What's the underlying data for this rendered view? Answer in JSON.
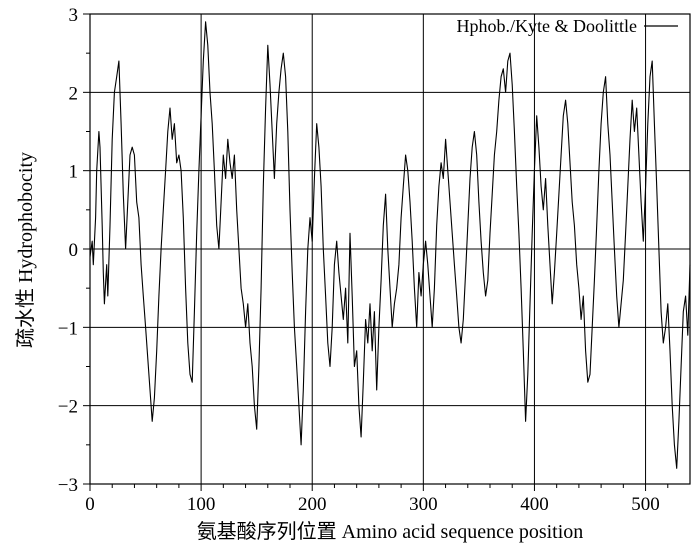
{
  "chart_data": {
    "type": "line",
    "title": "",
    "xlabel": "氨基酸序列位置 Amino acid sequence position",
    "ylabel": "疏水性  Hydrophobocity",
    "xlim": [
      0,
      540
    ],
    "ylim": [
      -3,
      3
    ],
    "xticks": [
      0,
      100,
      200,
      300,
      400,
      500
    ],
    "yticks": [
      -3,
      -2,
      -1,
      0,
      1,
      2,
      3
    ],
    "xtick_labels": [
      "0",
      "100",
      "200",
      "300",
      "400",
      "500"
    ],
    "ytick_labels": [
      "−3",
      "−2",
      "−1",
      "0",
      "1",
      "2",
      "3"
    ],
    "grid": true,
    "legend_position": "top-right",
    "series": [
      {
        "name": "Hphob./Kyte & Doolittle",
        "color": "#000000",
        "points": [
          [
            0,
            -0.1
          ],
          [
            2,
            0.1
          ],
          [
            3,
            -0.2
          ],
          [
            5,
            0.4
          ],
          [
            6,
            1.0
          ],
          [
            8,
            1.5
          ],
          [
            9,
            1.3
          ],
          [
            11,
            0.3
          ],
          [
            12,
            -0.3
          ],
          [
            13,
            -0.7
          ],
          [
            15,
            -0.2
          ],
          [
            16,
            -0.6
          ],
          [
            18,
            0.3
          ],
          [
            20,
            1.4
          ],
          [
            22,
            2.0
          ],
          [
            24,
            2.2
          ],
          [
            26,
            2.4
          ],
          [
            28,
            1.6
          ],
          [
            30,
            0.7
          ],
          [
            32,
            0.0
          ],
          [
            34,
            0.6
          ],
          [
            36,
            1.2
          ],
          [
            38,
            1.3
          ],
          [
            40,
            1.2
          ],
          [
            42,
            0.6
          ],
          [
            44,
            0.4
          ],
          [
            46,
            -0.2
          ],
          [
            48,
            -0.6
          ],
          [
            50,
            -1.0
          ],
          [
            52,
            -1.4
          ],
          [
            54,
            -1.8
          ],
          [
            56,
            -2.2
          ],
          [
            58,
            -1.9
          ],
          [
            60,
            -1.3
          ],
          [
            62,
            -0.6
          ],
          [
            64,
            0.0
          ],
          [
            66,
            0.5
          ],
          [
            68,
            1.0
          ],
          [
            70,
            1.5
          ],
          [
            72,
            1.8
          ],
          [
            74,
            1.4
          ],
          [
            76,
            1.6
          ],
          [
            78,
            1.1
          ],
          [
            80,
            1.2
          ],
          [
            82,
            1.0
          ],
          [
            84,
            0.4
          ],
          [
            86,
            -0.5
          ],
          [
            88,
            -1.2
          ],
          [
            90,
            -1.6
          ],
          [
            92,
            -1.7
          ],
          [
            94,
            -0.8
          ],
          [
            96,
            0.2
          ],
          [
            98,
            1.0
          ],
          [
            100,
            1.7
          ],
          [
            102,
            2.4
          ],
          [
            104,
            2.9
          ],
          [
            106,
            2.6
          ],
          [
            108,
            2.0
          ],
          [
            110,
            1.6
          ],
          [
            112,
            1.0
          ],
          [
            114,
            0.3
          ],
          [
            116,
            0.0
          ],
          [
            118,
            0.6
          ],
          [
            120,
            1.2
          ],
          [
            122,
            0.9
          ],
          [
            124,
            1.4
          ],
          [
            126,
            1.1
          ],
          [
            128,
            0.9
          ],
          [
            130,
            1.2
          ],
          [
            132,
            0.5
          ],
          [
            134,
            0.0
          ],
          [
            136,
            -0.5
          ],
          [
            138,
            -0.7
          ],
          [
            140,
            -1.0
          ],
          [
            142,
            -0.7
          ],
          [
            144,
            -1.2
          ],
          [
            146,
            -1.5
          ],
          [
            148,
            -2.0
          ],
          [
            150,
            -2.3
          ],
          [
            152,
            -1.5
          ],
          [
            154,
            -0.5
          ],
          [
            156,
            0.8
          ],
          [
            158,
            1.8
          ],
          [
            160,
            2.6
          ],
          [
            162,
            2.1
          ],
          [
            164,
            1.5
          ],
          [
            166,
            0.9
          ],
          [
            168,
            1.6
          ],
          [
            170,
            2.0
          ],
          [
            172,
            2.3
          ],
          [
            174,
            2.5
          ],
          [
            176,
            2.2
          ],
          [
            178,
            1.5
          ],
          [
            180,
            0.5
          ],
          [
            182,
            -0.3
          ],
          [
            184,
            -1.0
          ],
          [
            186,
            -1.5
          ],
          [
            188,
            -2.0
          ],
          [
            190,
            -2.5
          ],
          [
            192,
            -1.8
          ],
          [
            194,
            -0.8
          ],
          [
            196,
            0.0
          ],
          [
            198,
            0.4
          ],
          [
            200,
            0.1
          ],
          [
            202,
            0.9
          ],
          [
            204,
            1.6
          ],
          [
            206,
            1.3
          ],
          [
            208,
            0.8
          ],
          [
            210,
            0.0
          ],
          [
            212,
            -0.6
          ],
          [
            214,
            -1.2
          ],
          [
            216,
            -1.5
          ],
          [
            218,
            -1.0
          ],
          [
            220,
            -0.2
          ],
          [
            222,
            0.1
          ],
          [
            224,
            -0.3
          ],
          [
            226,
            -0.6
          ],
          [
            228,
            -0.9
          ],
          [
            230,
            -0.5
          ],
          [
            232,
            -1.2
          ],
          [
            234,
            0.2
          ],
          [
            236,
            -0.6
          ],
          [
            238,
            -1.5
          ],
          [
            240,
            -1.3
          ],
          [
            242,
            -2.0
          ],
          [
            244,
            -2.4
          ],
          [
            246,
            -1.7
          ],
          [
            248,
            -0.9
          ],
          [
            250,
            -1.2
          ],
          [
            252,
            -0.7
          ],
          [
            254,
            -1.3
          ],
          [
            256,
            -0.8
          ],
          [
            258,
            -1.8
          ],
          [
            260,
            -1.0
          ],
          [
            262,
            -0.4
          ],
          [
            264,
            0.3
          ],
          [
            266,
            0.7
          ],
          [
            268,
            0.0
          ],
          [
            270,
            -0.5
          ],
          [
            272,
            -1.0
          ],
          [
            274,
            -0.7
          ],
          [
            276,
            -0.5
          ],
          [
            278,
            -0.2
          ],
          [
            280,
            0.4
          ],
          [
            282,
            0.8
          ],
          [
            284,
            1.2
          ],
          [
            286,
            1.0
          ],
          [
            288,
            0.6
          ],
          [
            290,
            0.1
          ],
          [
            292,
            -0.5
          ],
          [
            294,
            -1.0
          ],
          [
            296,
            -0.3
          ],
          [
            298,
            -0.6
          ],
          [
            300,
            -0.2
          ],
          [
            302,
            0.1
          ],
          [
            304,
            -0.2
          ],
          [
            306,
            -0.6
          ],
          [
            308,
            -1.0
          ],
          [
            310,
            -0.5
          ],
          [
            312,
            0.3
          ],
          [
            314,
            0.8
          ],
          [
            316,
            1.1
          ],
          [
            318,
            0.9
          ],
          [
            320,
            1.4
          ],
          [
            322,
            1.0
          ],
          [
            324,
            0.6
          ],
          [
            326,
            0.2
          ],
          [
            328,
            -0.2
          ],
          [
            330,
            -0.6
          ],
          [
            332,
            -1.0
          ],
          [
            334,
            -1.2
          ],
          [
            336,
            -0.9
          ],
          [
            338,
            -0.3
          ],
          [
            340,
            0.3
          ],
          [
            342,
            0.9
          ],
          [
            344,
            1.3
          ],
          [
            346,
            1.5
          ],
          [
            348,
            1.2
          ],
          [
            350,
            0.6
          ],
          [
            352,
            0.1
          ],
          [
            354,
            -0.3
          ],
          [
            356,
            -0.6
          ],
          [
            358,
            -0.4
          ],
          [
            360,
            0.2
          ],
          [
            362,
            0.7
          ],
          [
            364,
            1.2
          ],
          [
            366,
            1.5
          ],
          [
            368,
            1.9
          ],
          [
            370,
            2.2
          ],
          [
            372,
            2.3
          ],
          [
            374,
            2.0
          ],
          [
            376,
            2.4
          ],
          [
            378,
            2.5
          ],
          [
            380,
            2.1
          ],
          [
            382,
            1.5
          ],
          [
            384,
            0.8
          ],
          [
            386,
            0.2
          ],
          [
            388,
            -0.5
          ],
          [
            390,
            -1.3
          ],
          [
            392,
            -2.2
          ],
          [
            394,
            -1.6
          ],
          [
            396,
            -0.7
          ],
          [
            398,
            0.2
          ],
          [
            400,
            1.0
          ],
          [
            402,
            1.7
          ],
          [
            404,
            1.3
          ],
          [
            406,
            0.8
          ],
          [
            408,
            0.5
          ],
          [
            410,
            0.9
          ],
          [
            412,
            0.3
          ],
          [
            414,
            -0.2
          ],
          [
            416,
            -0.7
          ],
          [
            418,
            -0.3
          ],
          [
            420,
            0.2
          ],
          [
            422,
            0.7
          ],
          [
            424,
            1.2
          ],
          [
            426,
            1.7
          ],
          [
            428,
            1.9
          ],
          [
            430,
            1.6
          ],
          [
            432,
            1.1
          ],
          [
            434,
            0.6
          ],
          [
            436,
            0.3
          ],
          [
            438,
            -0.2
          ],
          [
            440,
            -0.5
          ],
          [
            442,
            -0.9
          ],
          [
            444,
            -0.6
          ],
          [
            446,
            -1.3
          ],
          [
            448,
            -1.7
          ],
          [
            450,
            -1.6
          ],
          [
            452,
            -1.0
          ],
          [
            454,
            -0.4
          ],
          [
            456,
            0.3
          ],
          [
            458,
            1.0
          ],
          [
            460,
            1.6
          ],
          [
            462,
            2.0
          ],
          [
            464,
            2.2
          ],
          [
            466,
            1.6
          ],
          [
            468,
            1.2
          ],
          [
            470,
            0.6
          ],
          [
            472,
            0.0
          ],
          [
            474,
            -0.6
          ],
          [
            476,
            -1.0
          ],
          [
            478,
            -0.7
          ],
          [
            480,
            -0.4
          ],
          [
            482,
            0.2
          ],
          [
            484,
            0.8
          ],
          [
            486,
            1.4
          ],
          [
            488,
            1.9
          ],
          [
            490,
            1.5
          ],
          [
            492,
            1.8
          ],
          [
            494,
            1.2
          ],
          [
            496,
            0.6
          ],
          [
            498,
            0.1
          ],
          [
            500,
            0.8
          ],
          [
            502,
            1.6
          ],
          [
            504,
            2.2
          ],
          [
            506,
            2.4
          ],
          [
            508,
            1.6
          ],
          [
            510,
            0.8
          ],
          [
            512,
            0.0
          ],
          [
            514,
            -0.8
          ],
          [
            516,
            -1.2
          ],
          [
            518,
            -1.0
          ],
          [
            520,
            -0.7
          ],
          [
            522,
            -1.3
          ],
          [
            524,
            -2.0
          ],
          [
            526,
            -2.5
          ],
          [
            528,
            -2.8
          ],
          [
            530,
            -2.2
          ],
          [
            532,
            -1.5
          ],
          [
            534,
            -0.8
          ],
          [
            536,
            -0.6
          ],
          [
            538,
            -1.1
          ],
          [
            540,
            -0.2
          ]
        ]
      }
    ]
  }
}
